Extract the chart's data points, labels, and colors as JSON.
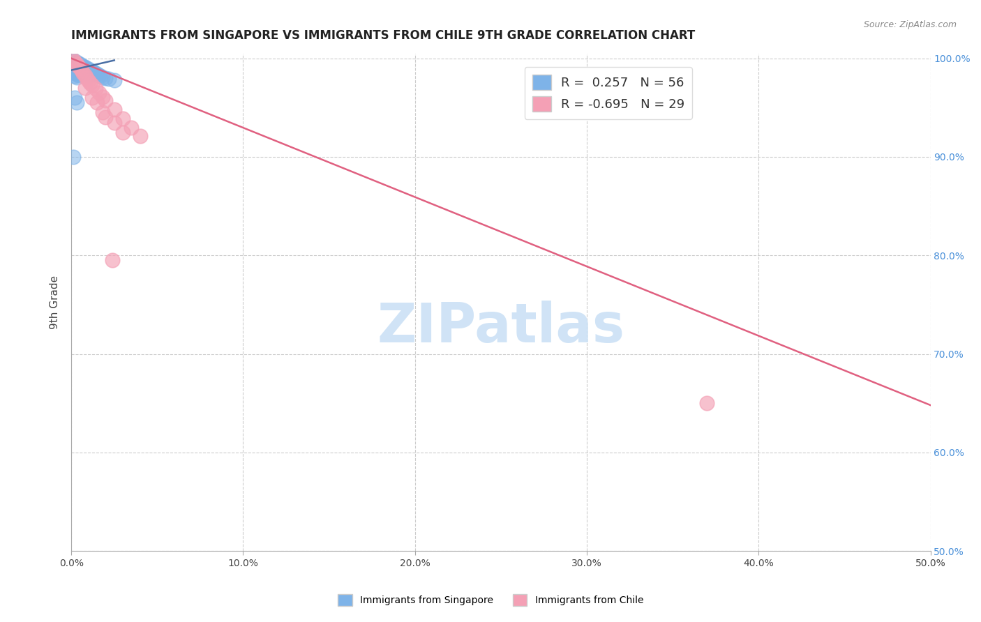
{
  "title": "IMMIGRANTS FROM SINGAPORE VS IMMIGRANTS FROM CHILE 9TH GRADE CORRELATION CHART",
  "source": "Source: ZipAtlas.com",
  "ylabel": "9th Grade",
  "xlim": [
    0.0,
    0.5
  ],
  "ylim": [
    0.5,
    1.005
  ],
  "xticks": [
    0.0,
    0.1,
    0.2,
    0.3,
    0.4,
    0.5
  ],
  "yticks": [
    0.5,
    0.6,
    0.7,
    0.8,
    0.9,
    1.0
  ],
  "ytick_labels_right": [
    "50.0%",
    "60.0%",
    "70.0%",
    "80.0%",
    "90.0%",
    "100.0%"
  ],
  "xtick_labels": [
    "0.0%",
    "10.0%",
    "20.0%",
    "30.0%",
    "40.0%",
    "50.0%"
  ],
  "r_singapore": 0.257,
  "n_singapore": 56,
  "r_chile": -0.695,
  "n_chile": 29,
  "singapore_color": "#7eb3e8",
  "chile_color": "#f4a0b5",
  "singapore_line_color": "#4a6fa5",
  "chile_line_color": "#e06080",
  "watermark": "ZIPatlas",
  "watermark_color": "#c8dff5",
  "singapore_x": [
    0.001,
    0.001,
    0.001,
    0.002,
    0.002,
    0.002,
    0.002,
    0.002,
    0.002,
    0.003,
    0.003,
    0.003,
    0.003,
    0.003,
    0.003,
    0.004,
    0.004,
    0.004,
    0.004,
    0.004,
    0.005,
    0.005,
    0.005,
    0.005,
    0.006,
    0.006,
    0.006,
    0.006,
    0.007,
    0.007,
    0.007,
    0.008,
    0.008,
    0.008,
    0.009,
    0.009,
    0.009,
    0.01,
    0.01,
    0.01,
    0.011,
    0.011,
    0.012,
    0.012,
    0.013,
    0.014,
    0.015,
    0.016,
    0.017,
    0.018,
    0.02,
    0.022,
    0.025,
    0.002,
    0.003,
    0.001
  ],
  "singapore_y": [
    0.998,
    0.995,
    0.992,
    0.997,
    0.994,
    0.991,
    0.988,
    0.985,
    0.982,
    0.996,
    0.993,
    0.99,
    0.987,
    0.984,
    0.981,
    0.995,
    0.992,
    0.989,
    0.986,
    0.983,
    0.994,
    0.991,
    0.988,
    0.985,
    0.993,
    0.99,
    0.987,
    0.984,
    0.992,
    0.989,
    0.986,
    0.991,
    0.988,
    0.985,
    0.99,
    0.987,
    0.984,
    0.989,
    0.986,
    0.983,
    0.988,
    0.985,
    0.987,
    0.984,
    0.986,
    0.985,
    0.984,
    0.983,
    0.982,
    0.981,
    0.98,
    0.979,
    0.978,
    0.96,
    0.955,
    0.9
  ],
  "chile_x": [
    0.001,
    0.002,
    0.003,
    0.004,
    0.005,
    0.006,
    0.007,
    0.008,
    0.009,
    0.01,
    0.011,
    0.012,
    0.014,
    0.016,
    0.018,
    0.02,
    0.025,
    0.03,
    0.035,
    0.04,
    0.008,
    0.012,
    0.02,
    0.025,
    0.03,
    0.015,
    0.018,
    0.37,
    0.024
  ],
  "chile_y": [
    0.998,
    0.996,
    0.994,
    0.992,
    0.99,
    0.988,
    0.985,
    0.983,
    0.98,
    0.977,
    0.975,
    0.973,
    0.969,
    0.965,
    0.961,
    0.957,
    0.948,
    0.939,
    0.93,
    0.921,
    0.97,
    0.96,
    0.94,
    0.935,
    0.925,
    0.955,
    0.945,
    0.65,
    0.795
  ],
  "chile_line_x": [
    0.0,
    0.5
  ],
  "chile_line_y": [
    1.0,
    0.648
  ],
  "singapore_line_x": [
    0.0,
    0.025
  ],
  "singapore_line_y": [
    0.988,
    0.998
  ]
}
